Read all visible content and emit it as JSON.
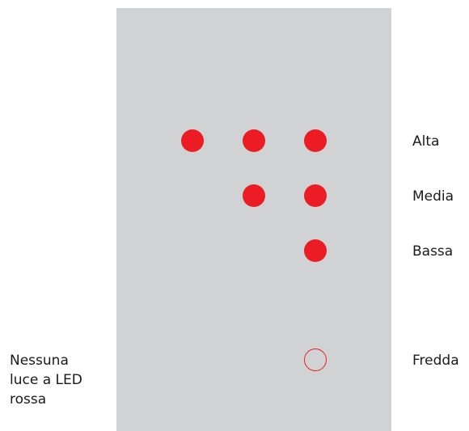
{
  "colors": {
    "panel": "#d1d2d4",
    "led": "#ec1c24",
    "text": "#1a1a1a"
  },
  "levels": [
    {
      "label": "Alta",
      "leds_on": 3
    },
    {
      "label": "Media",
      "leds_on": 2
    },
    {
      "label": "Bassa",
      "leds_on": 1
    },
    {
      "label": "Fredda",
      "leds_on": 0
    }
  ],
  "note": "Nessuna luce a LED rossa"
}
